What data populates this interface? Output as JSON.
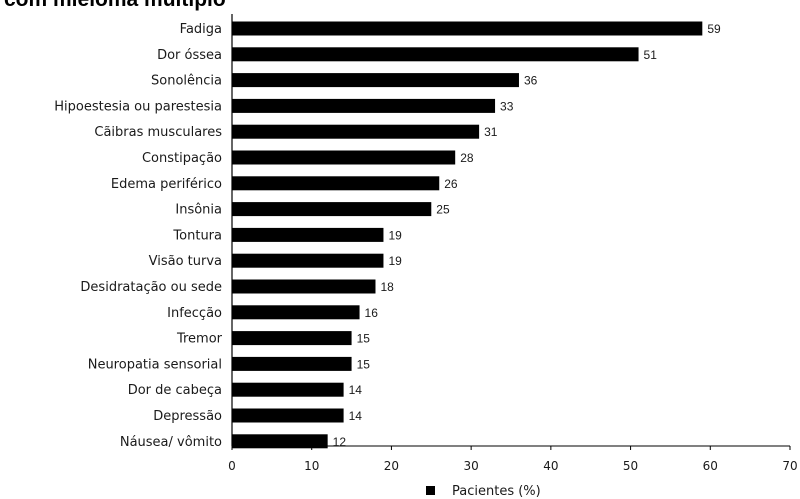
{
  "chart_data": {
    "type": "bar",
    "orientation": "horizontal",
    "title": "com mieloma múltiplo",
    "categories": [
      "Fadiga",
      "Dor óssea",
      "Sonolência",
      "Hipoestesia ou parestesia",
      "Cãibras musculares",
      "Constipação",
      "Edema periférico",
      "Insônia",
      "Tontura",
      "Visão turva",
      "Desidratação ou sede",
      "Infecção",
      "Tremor",
      "Neuropatia sensorial",
      "Dor de cabeça",
      "Depressão",
      "Náusea/ vômito"
    ],
    "series": [
      {
        "name": "Pacientes (%)",
        "values": [
          59,
          51,
          36,
          33,
          31,
          28,
          26,
          25,
          19,
          19,
          18,
          16,
          15,
          15,
          14,
          14,
          12
        ]
      }
    ],
    "xticks": [
      "0",
      "10",
      "20",
      "30",
      "40",
      "50",
      "60",
      "70"
    ],
    "xlim": [
      0,
      70
    ],
    "xlabel": "",
    "ylabel": "",
    "grid": false,
    "legend_position": "bottom-center",
    "bar_color": "#000000"
  }
}
